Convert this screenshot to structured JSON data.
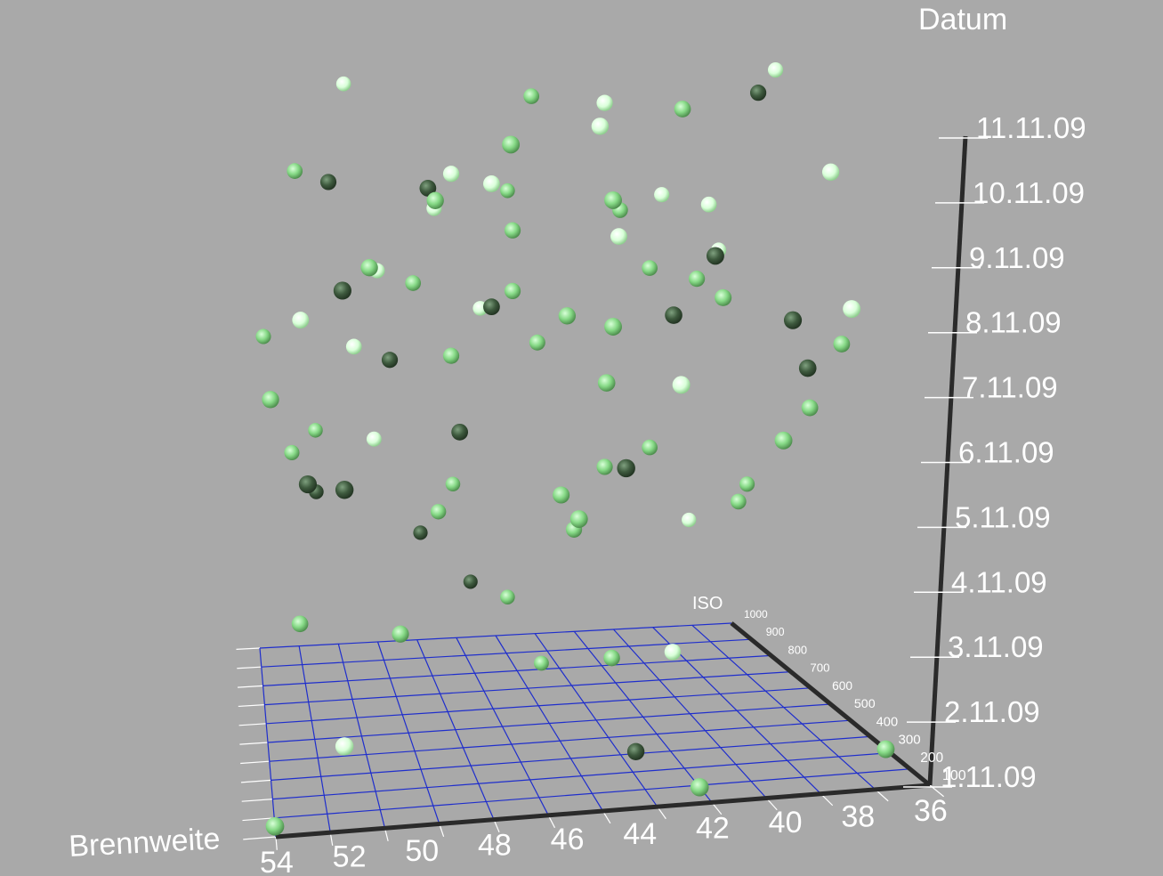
{
  "chart_data": {
    "type": "scatter",
    "title": "",
    "xlabel": "Brennweite",
    "ylabel": "ISO",
    "zlabel": "Datum",
    "x_ticks": [
      "54",
      "52",
      "50",
      "48",
      "46",
      "44",
      "42",
      "40",
      "38",
      "36"
    ],
    "y_ticks": [
      "100",
      "200",
      "300",
      "400",
      "500",
      "600",
      "700",
      "800",
      "900",
      "1000"
    ],
    "z_ticks": [
      "1.11.09",
      "2.11.09",
      "3.11.09",
      "4.11.09",
      "5.11.09",
      "6.11.09",
      "7.11.09",
      "8.11.09",
      "9.11.09",
      "10.11.09",
      "11.11.09"
    ],
    "xlim": [
      54,
      36
    ],
    "ylim": [
      100,
      1000
    ],
    "zlim": [
      "1.11.09",
      "11.11.09"
    ],
    "grid": true,
    "colors": {
      "background": "#a9a9a9",
      "grid_blue": "#1f2ecc",
      "grid_white": "#ffffff",
      "axis": "#2a2a2a",
      "point_light": "#eaffea",
      "point_mid": "#86d986",
      "point_dark": "#3e5a3e"
    },
    "points": [
      {
        "brennweite": 54,
        "iso": 150,
        "datum": "1.11.09",
        "shade": "mid"
      },
      {
        "brennweite": 53,
        "iso": 520,
        "datum": "3.11.09",
        "shade": "mid"
      },
      {
        "brennweite": 52,
        "iso": 900,
        "datum": "4.11.09",
        "shade": "dark"
      },
      {
        "brennweite": 52,
        "iso": 200,
        "datum": "2.11.09",
        "shade": "light"
      },
      {
        "brennweite": 50,
        "iso": 430,
        "datum": "3.11.09",
        "shade": "mid"
      },
      {
        "brennweite": 48,
        "iso": 960,
        "datum": "3.11.09",
        "shade": "dark"
      },
      {
        "brennweite": 46,
        "iso": 990,
        "datum": "2.11.09",
        "shade": "dark"
      },
      {
        "brennweite": 45,
        "iso": 900,
        "datum": "2.11.09",
        "shade": "mid"
      },
      {
        "brennweite": 44,
        "iso": 850,
        "datum": "1.11.09",
        "shade": "mid"
      },
      {
        "brennweite": 43,
        "iso": 380,
        "datum": "1.11.09",
        "shade": "dark"
      },
      {
        "brennweite": 43,
        "iso": 550,
        "datum": "2.11.09",
        "shade": "mid"
      },
      {
        "brennweite": 42,
        "iso": 180,
        "datum": "1.11.09",
        "shade": "mid"
      },
      {
        "brennweite": 41,
        "iso": 560,
        "datum": "2.11.09",
        "shade": "light"
      },
      {
        "brennweite": 38,
        "iso": 950,
        "datum": "3.11.09",
        "shade": "light"
      },
      {
        "brennweite": 36,
        "iso": 300,
        "datum": "1.11.09",
        "shade": "mid"
      },
      {
        "brennweite": 53,
        "iso": 800,
        "datum": "5.11.09",
        "shade": "mid"
      },
      {
        "brennweite": 52,
        "iso": 920,
        "datum": "5.11.09",
        "shade": "mid"
      },
      {
        "brennweite": 50,
        "iso": 850,
        "datum": "5.11.09",
        "shade": "light"
      },
      {
        "brennweite": 48,
        "iso": 750,
        "datum": "4.11.09",
        "shade": "mid"
      },
      {
        "brennweite": 47,
        "iso": 900,
        "datum": "4.11.09",
        "shade": "mid"
      },
      {
        "brennweite": 44,
        "iso": 600,
        "datum": "4.11.09",
        "shade": "mid"
      },
      {
        "brennweite": 38,
        "iso": 700,
        "datum": "4.11.09",
        "shade": "mid"
      },
      {
        "brennweite": 37,
        "iso": 800,
        "datum": "4.11.09",
        "shade": "mid"
      },
      {
        "brennweite": 53,
        "iso": 250,
        "datum": "6.11.09",
        "shade": "dark"
      },
      {
        "brennweite": 52,
        "iso": 200,
        "datum": "6.11.09",
        "shade": "dark"
      },
      {
        "brennweite": 48,
        "iso": 500,
        "datum": "6.11.09",
        "shade": "dark"
      },
      {
        "brennweite": 45,
        "iso": 450,
        "datum": "5.11.09",
        "shade": "mid"
      },
      {
        "brennweite": 45,
        "iso": 300,
        "datum": "5.11.09",
        "shade": "mid"
      },
      {
        "brennweite": 44,
        "iso": 200,
        "datum": "6.11.09",
        "shade": "dark"
      },
      {
        "brennweite": 43,
        "iso": 600,
        "datum": "5.11.09",
        "shade": "mid"
      },
      {
        "brennweite": 41,
        "iso": 700,
        "datum": "5.11.09",
        "shade": "mid"
      },
      {
        "brennweite": 39,
        "iso": 300,
        "datum": "6.11.09",
        "shade": "mid"
      },
      {
        "brennweite": 37,
        "iso": 500,
        "datum": "6.11.09",
        "shade": "mid"
      },
      {
        "brennweite": 54,
        "iso": 800,
        "datum": "7.11.09",
        "shade": "mid"
      },
      {
        "brennweite": 54,
        "iso": 400,
        "datum": "7.11.09",
        "shade": "mid"
      },
      {
        "brennweite": 51,
        "iso": 700,
        "datum": "7.11.09",
        "shade": "light"
      },
      {
        "brennweite": 50,
        "iso": 600,
        "datum": "7.11.09",
        "shade": "dark"
      },
      {
        "brennweite": 48,
        "iso": 600,
        "datum": "7.11.09",
        "shade": "mid"
      },
      {
        "brennweite": 46,
        "iso": 900,
        "datum": "7.11.09",
        "shade": "light"
      },
      {
        "brennweite": 45,
        "iso": 650,
        "datum": "7.11.09",
        "shade": "mid"
      },
      {
        "brennweite": 44,
        "iso": 350,
        "datum": "7.11.09",
        "shade": "mid"
      },
      {
        "brennweite": 42,
        "iso": 300,
        "datum": "7.11.09",
        "shade": "light"
      },
      {
        "brennweite": 40,
        "iso": 450,
        "datum": "8.11.09",
        "shade": "mid"
      },
      {
        "brennweite": 39,
        "iso": 250,
        "datum": "8.11.09",
        "shade": "dark"
      },
      {
        "brennweite": 38,
        "iso": 350,
        "datum": "7.11.09",
        "shade": "dark"
      },
      {
        "brennweite": 36,
        "iso": 500,
        "datum": "7.11.09",
        "shade": "mid"
      },
      {
        "brennweite": 53,
        "iso": 500,
        "datum": "8.11.09",
        "shade": "light"
      },
      {
        "brennweite": 50,
        "iso": 800,
        "datum": "8.11.09",
        "shade": "light"
      },
      {
        "brennweite": 49,
        "iso": 700,
        "datum": "8.11.09",
        "shade": "mid"
      },
      {
        "brennweite": 47,
        "iso": 500,
        "datum": "8.11.09",
        "shade": "dark"
      },
      {
        "brennweite": 46,
        "iso": 600,
        "datum": "8.11.09",
        "shade": "mid"
      },
      {
        "brennweite": 45,
        "iso": 400,
        "datum": "8.11.09",
        "shade": "mid"
      },
      {
        "brennweite": 44,
        "iso": 300,
        "datum": "8.11.09",
        "shade": "mid"
      },
      {
        "brennweite": 42,
        "iso": 350,
        "datum": "8.11.09",
        "shade": "dark"
      },
      {
        "brennweite": 41,
        "iso": 700,
        "datum": "8.11.09",
        "shade": "mid"
      },
      {
        "brennweite": 40,
        "iso": 600,
        "datum": "8.11.09",
        "shade": "mid"
      },
      {
        "brennweite": 38,
        "iso": 800,
        "datum": "8.11.09",
        "shade": "light"
      },
      {
        "brennweite": 37,
        "iso": 300,
        "datum": "8.11.09",
        "shade": "light"
      },
      {
        "brennweite": 52,
        "iso": 250,
        "datum": "9.11.09",
        "shade": "dark"
      },
      {
        "brennweite": 52,
        "iso": 600,
        "datum": "10.11.09",
        "shade": "dark"
      },
      {
        "brennweite": 51,
        "iso": 400,
        "datum": "9.11.09",
        "shade": "mid"
      },
      {
        "brennweite": 49,
        "iso": 400,
        "datum": "10.11.09",
        "shade": "mid"
      },
      {
        "brennweite": 48,
        "iso": 800,
        "datum": "9.11.09",
        "shade": "light"
      },
      {
        "brennweite": 47,
        "iso": 500,
        "datum": "10.11.09",
        "shade": "light"
      },
      {
        "brennweite": 46,
        "iso": 600,
        "datum": "9.11.09",
        "shade": "mid"
      },
      {
        "brennweite": 45,
        "iso": 900,
        "datum": "9.11.09",
        "shade": "mid"
      },
      {
        "brennweite": 44,
        "iso": 300,
        "datum": "10.11.09",
        "shade": "mid"
      },
      {
        "brennweite": 43,
        "iso": 500,
        "datum": "9.11.09",
        "shade": "light"
      },
      {
        "brennweite": 42,
        "iso": 700,
        "datum": "9.11.09",
        "shade": "mid"
      },
      {
        "brennweite": 41,
        "iso": 300,
        "datum": "9.11.09",
        "shade": "dark"
      },
      {
        "brennweite": 40,
        "iso": 800,
        "datum": "9.11.09",
        "shade": "light"
      },
      {
        "brennweite": 39,
        "iso": 700,
        "datum": "9.11.09",
        "shade": "light"
      },
      {
        "brennweite": 37,
        "iso": 400,
        "datum": "10.11.09",
        "shade": "light"
      },
      {
        "brennweite": 53,
        "iso": 700,
        "datum": "10.11.09",
        "shade": "mid"
      },
      {
        "brennweite": 51,
        "iso": 900,
        "datum": "11.11.09",
        "shade": "light"
      },
      {
        "brennweite": 49,
        "iso": 500,
        "datum": "10.11.09",
        "shade": "dark"
      },
      {
        "brennweite": 48,
        "iso": 600,
        "datum": "10.11.09",
        "shade": "light"
      },
      {
        "brennweite": 47,
        "iso": 300,
        "datum": "11.11.09",
        "shade": "mid"
      },
      {
        "brennweite": 45,
        "iso": 700,
        "datum": "11.11.09",
        "shade": "mid"
      },
      {
        "brennweite": 44,
        "iso": 400,
        "datum": "11.11.09",
        "shade": "light"
      },
      {
        "brennweite": 43,
        "iso": 600,
        "datum": "11.11.09",
        "shade": "light"
      },
      {
        "brennweite": 41,
        "iso": 500,
        "datum": "11.11.09",
        "shade": "mid"
      },
      {
        "brennweite": 38,
        "iso": 600,
        "datum": "11.11.09",
        "shade": "dark"
      },
      {
        "brennweite": 36,
        "iso": 800,
        "datum": "11.11.09",
        "shade": "light"
      }
    ]
  }
}
